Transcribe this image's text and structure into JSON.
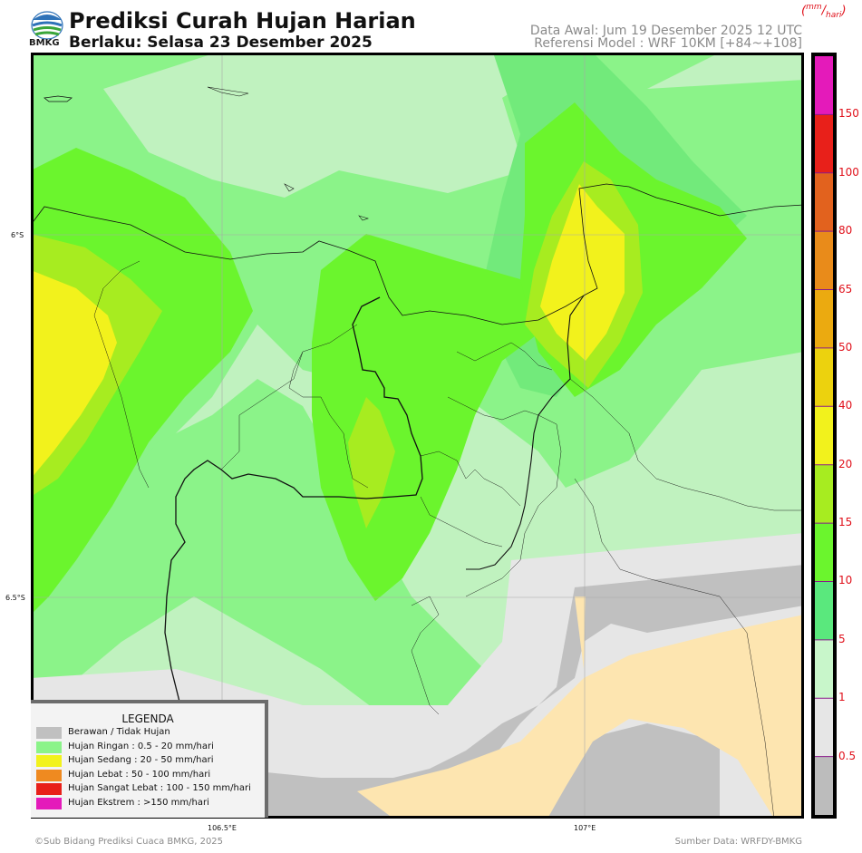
{
  "header": {
    "logo_text": "BMKG",
    "title": "Prediksi Curah Hujan Harian",
    "subtitle": "Berlaku: Selasa 23 Desember 2025",
    "data_awal": "Data Awal: Jum 19 Desember 2025 12 UTC",
    "referensi": "Referensi Model : WRF 10KM [+84~+108]",
    "unit_num": "mm",
    "unit_den": "hari"
  },
  "map": {
    "lat_labels": [
      "6°S",
      "6.5°S"
    ],
    "lon_labels": [
      "106.5°E",
      "107°E"
    ],
    "colors": {
      "ringan_light": "#c0f2bf",
      "ringan": "#8bf389",
      "ringan_5_10": "#72ea7b",
      "ringan_10_15": "#6bf52d",
      "ringan_15_20": "#a7ec20",
      "sedang": "#f2f21c",
      "berawan_light": "#e6e6e6",
      "berawan": "#c0c0c0",
      "cream": "#fde5b0"
    }
  },
  "colorbar": {
    "labels": [
      "150",
      "100",
      "80",
      "65",
      "50",
      "40",
      "20",
      "15",
      "10",
      "5",
      "1",
      "0.5"
    ],
    "colors": [
      "#e41aba",
      "#e8201a",
      "#e2621e",
      "#e98b1a",
      "#ebaa10",
      "#ecd20e",
      "#f2f21c",
      "#a7ec20",
      "#6bf52d",
      "#5ae87d",
      "#c8f6ca",
      "#e6e6e6",
      "#bcbcbc"
    ]
  },
  "legend": {
    "title": "LEGENDA",
    "items": [
      {
        "label": "Berawan / Tidak Hujan",
        "color": "#c0c0c0"
      },
      {
        "label": "Hujan Ringan : 0.5 - 20 mm/hari",
        "color": "#8bf389"
      },
      {
        "label": "Hujan Sedang : 20 - 50 mm/hari",
        "color": "#f2f21c"
      },
      {
        "label": "Hujan Lebat : 50 - 100 mm/hari",
        "color": "#ef8a20"
      },
      {
        "label": "Hujan Sangat Lebat : 100 - 150 mm/hari",
        "color": "#e8201a"
      },
      {
        "label": "Hujan Ekstrem : >150 mm/hari",
        "color": "#e41aba"
      }
    ]
  },
  "footer": {
    "left": "©Sub Bidang Prediksi Cuaca BMKG, 2025",
    "right": "Sumber Data: WRFDY-BMKG"
  }
}
